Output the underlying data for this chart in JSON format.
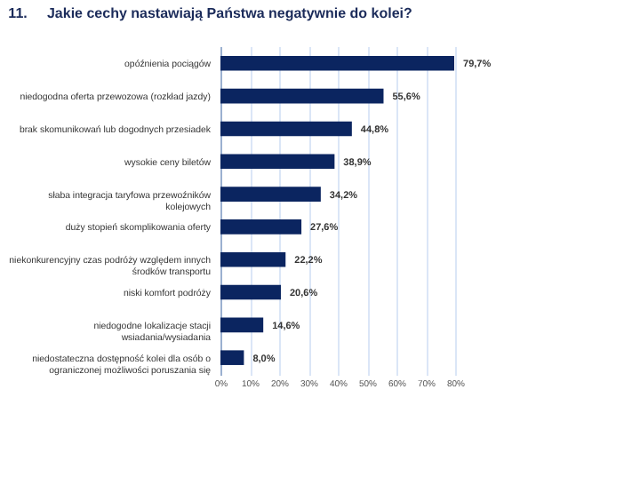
{
  "chart_data": {
    "type": "bar",
    "orientation": "horizontal",
    "title": "11.     Jakie cechy nastawiają Państwa negatywnie do kolei?",
    "categories": [
      "opóźnienia pociągów",
      "niedogodna oferta przewozowa (rozkład jazdy)",
      "brak skomunikowań lub dogodnych przesiadek",
      "wysokie ceny biletów",
      "słaba integracja taryfowa przewoźników kolejowych",
      "duży stopień skomplikowania oferty",
      "niekonkurencyjny czas podróży względem innych środków transportu",
      "niski komfort podróży",
      "niedogodne lokalizacje stacji wsiadania/wysiadania",
      "niedostateczna dostępność kolei dla osób o ograniczonej możliwości poruszania się"
    ],
    "values": [
      79.7,
      55.6,
      44.8,
      38.9,
      34.2,
      27.6,
      22.2,
      20.6,
      14.6,
      8.0
    ],
    "value_labels": [
      "79,7%",
      "55,6%",
      "44,8%",
      "38,9%",
      "34,2%",
      "27,6%",
      "22,2%",
      "20,6%",
      "14,6%",
      "8,0%"
    ],
    "color": "#0b2560",
    "xlim": [
      0,
      80
    ],
    "xticks": [
      {
        "value": 0,
        "label": "0%"
      },
      {
        "value": 10,
        "label": "10%"
      },
      {
        "value": 20,
        "label": "20%"
      },
      {
        "value": 30,
        "label": "30%"
      },
      {
        "value": 40,
        "label": "40%"
      },
      {
        "value": 50,
        "label": "50%"
      },
      {
        "value": 60,
        "label": "60%"
      },
      {
        "value": 70,
        "label": "70%"
      },
      {
        "value": 80,
        "label": "80%"
      }
    ],
    "grid": "x"
  }
}
